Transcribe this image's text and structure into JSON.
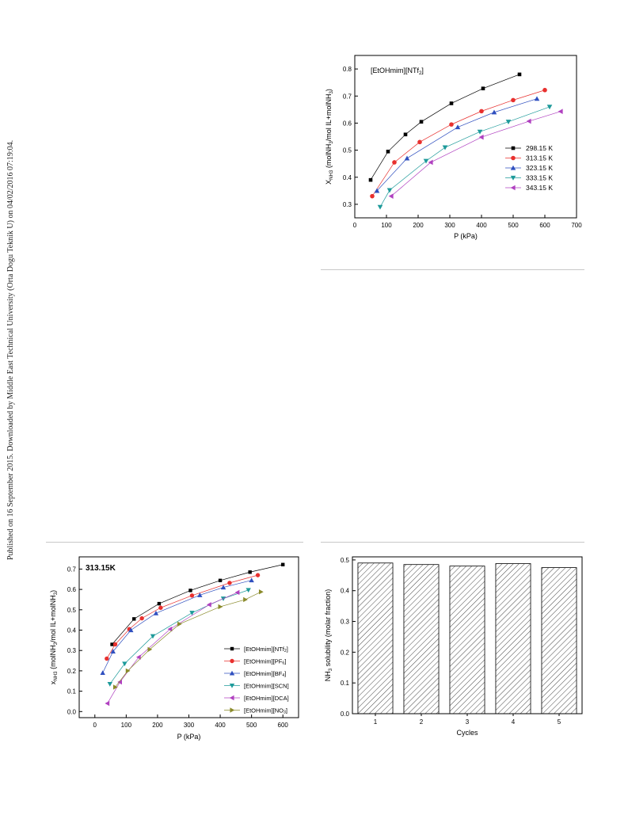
{
  "side_note": "Published on 16 September 2015. Downloaded by Middle East Technical University (Orta Dogu Teknik U) on 04/02/2016 07:19:04.",
  "chart_data": [
    {
      "type": "line",
      "label_prefix": "[EtOHmim][NTf",
      "label_sub": "2",
      "label_suffix": "]",
      "ylabel": "X",
      "ylabel_sub": "NH3",
      "ylabel_rest_a": "(molNH",
      "ylabel_rest_sub": "3",
      "ylabel_rest_b": "/mol IL+molNH",
      "ylabel_rest_sub2": "3",
      "ylabel_rest_c": ")",
      "xlabel": "P (kPa)",
      "xlim": [
        0,
        700
      ],
      "ylim": [
        0.25,
        0.85
      ],
      "xticks": [
        0,
        100,
        200,
        300,
        400,
        500,
        600,
        700
      ],
      "yticks": [
        0.3,
        0.4,
        0.5,
        0.6,
        0.7,
        0.8
      ],
      "series": [
        {
          "name": "298.15 K",
          "color": "#000000",
          "marker": "square",
          "x": [
            50,
            105,
            160,
            210,
            305,
            405,
            520
          ],
          "y": [
            0.39,
            0.495,
            0.558,
            0.605,
            0.673,
            0.728,
            0.78
          ]
        },
        {
          "name": "313.15 K",
          "color": "#e8302e",
          "marker": "circle",
          "x": [
            55,
            125,
            205,
            305,
            400,
            500,
            600
          ],
          "y": [
            0.33,
            0.455,
            0.53,
            0.595,
            0.644,
            0.685,
            0.722
          ]
        },
        {
          "name": "323.15 K",
          "color": "#2f4fbf",
          "marker": "triangle-up",
          "x": [
            70,
            165,
            325,
            440,
            575
          ],
          "y": [
            0.35,
            0.47,
            0.585,
            0.64,
            0.69
          ]
        },
        {
          "name": "333.15 K",
          "color": "#1d9a9a",
          "marker": "triangle-down",
          "x": [
            80,
            110,
            225,
            285,
            395,
            485,
            615
          ],
          "y": [
            0.29,
            0.352,
            0.46,
            0.51,
            0.568,
            0.605,
            0.66
          ]
        },
        {
          "name": "343.15 K",
          "color": "#b040c0",
          "marker": "triangle-left",
          "x": [
            115,
            240,
            400,
            550,
            650
          ],
          "y": [
            0.33,
            0.455,
            0.548,
            0.607,
            0.643
          ]
        }
      ]
    },
    {
      "type": "line",
      "label": "313.15K",
      "ylabel_a": "x",
      "ylabel_sub": "NH3",
      "ylabel_b": " (molNH",
      "ylabel_sub2": "3",
      "ylabel_c": "/mol IL+molNH",
      "ylabel_sub3": "3",
      "ylabel_d": ")",
      "xlabel": "P (kPa)",
      "xlim": [
        -50,
        650
      ],
      "ylim": [
        -0.03,
        0.76
      ],
      "xticks": [
        0,
        100,
        200,
        300,
        400,
        500,
        600
      ],
      "yticks": [
        0.0,
        0.1,
        0.2,
        0.3,
        0.4,
        0.5,
        0.6,
        0.7
      ],
      "series": [
        {
          "name": "[EtOHmim][NTf",
          "sub": "2",
          "color": "#000000",
          "marker": "square",
          "x": [
            55,
            125,
            205,
            305,
            400,
            495,
            600
          ],
          "y": [
            0.33,
            0.455,
            0.53,
            0.595,
            0.644,
            0.685,
            0.722
          ]
        },
        {
          "name": "[EtOHmim][PF",
          "sub": "6",
          "color": "#e8302e",
          "marker": "circle",
          "x": [
            38,
            65,
            110,
            150,
            210,
            310,
            430,
            520
          ],
          "y": [
            0.26,
            0.33,
            0.405,
            0.458,
            0.51,
            0.57,
            0.632,
            0.67
          ]
        },
        {
          "name": "[EtOHmim][BF",
          "sub": "4",
          "color": "#2f4fbf",
          "marker": "triangle-up",
          "x": [
            25,
            58,
            115,
            195,
            335,
            410,
            500
          ],
          "y": [
            0.19,
            0.295,
            0.4,
            0.483,
            0.572,
            0.61,
            0.645
          ]
        },
        {
          "name": "[EtOHmim][SCN]",
          "sub": "",
          "color": "#1d9a9a",
          "marker": "triangle-down",
          "x": [
            48,
            95,
            185,
            310,
            410,
            490
          ],
          "y": [
            0.135,
            0.235,
            0.37,
            0.485,
            0.555,
            0.597
          ]
        },
        {
          "name": "[EtOHmim][DCA]",
          "sub": "",
          "color": "#b040c0",
          "marker": "triangle-left",
          "x": [
            40,
            80,
            140,
            240,
            365,
            455
          ],
          "y": [
            0.04,
            0.145,
            0.267,
            0.405,
            0.525,
            0.585
          ]
        },
        {
          "name": "[EtOHmim][NO",
          "sub": "3",
          "color": "#8a8a2a",
          "marker": "triangle-right",
          "x": [
            65,
            105,
            175,
            270,
            400,
            480,
            530
          ],
          "y": [
            0.12,
            0.2,
            0.305,
            0.43,
            0.515,
            0.55,
            0.588
          ]
        }
      ],
      "closing_bracket": "]"
    },
    {
      "type": "bar",
      "ylabel_a": "NH",
      "ylabel_sub": "3",
      "ylabel_b": " solubility (molar fraction)",
      "xlabel": "Cycles",
      "categories": [
        "1",
        "2",
        "3",
        "4",
        "5"
      ],
      "values": [
        0.49,
        0.485,
        0.48,
        0.488,
        0.475
      ],
      "ylim": [
        0.0,
        0.51
      ],
      "yticks": [
        0.0,
        0.1,
        0.2,
        0.3,
        0.4,
        0.5
      ]
    }
  ]
}
